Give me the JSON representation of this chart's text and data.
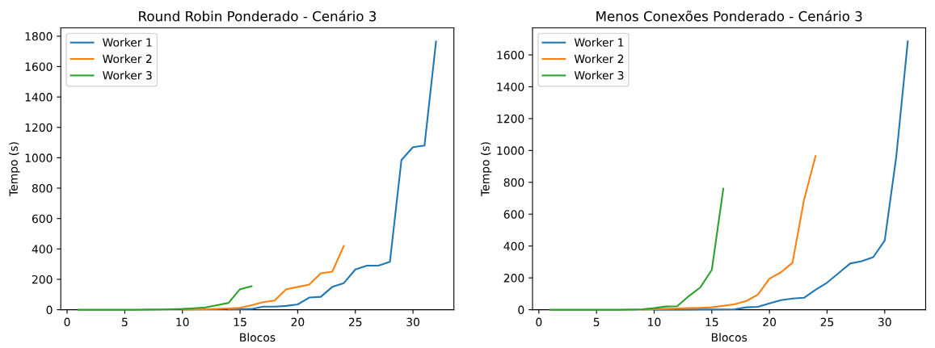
{
  "chart_data": [
    {
      "type": "line",
      "title": "Round Robin Ponderado - Cenário 3",
      "xlabel": "Blocos",
      "ylabel": "Tempo (s)",
      "xlim": [
        -0.55,
        33.55
      ],
      "ylim": [
        0,
        1855
      ],
      "xticks": [
        0,
        5,
        10,
        15,
        20,
        25,
        30
      ],
      "yticks": [
        0,
        200,
        400,
        600,
        800,
        1000,
        1200,
        1400,
        1600,
        1800
      ],
      "grid": false,
      "legend": "top left",
      "series": [
        {
          "name": "Worker 1",
          "color": "#1f77b4",
          "x": [
            14,
            15,
            16,
            17,
            18,
            19,
            20,
            21,
            22,
            23,
            24,
            25,
            26,
            27,
            28,
            29,
            30,
            31,
            32
          ],
          "values": [
            2,
            3,
            5,
            20,
            20,
            25,
            35,
            80,
            85,
            150,
            175,
            265,
            290,
            290,
            315,
            985,
            1070,
            1080,
            1765
          ]
        },
        {
          "name": "Worker 2",
          "color": "#ff7f0e",
          "x": [
            10,
            11,
            12,
            13,
            14,
            15,
            16,
            17,
            18,
            19,
            20,
            21,
            22,
            23,
            24
          ],
          "values": [
            1,
            2,
            3,
            5,
            8,
            12,
            30,
            50,
            60,
            135,
            150,
            165,
            240,
            250,
            420
          ]
        },
        {
          "name": "Worker 3",
          "color": "#2ca02c",
          "x": [
            1,
            2,
            3,
            4,
            5,
            6,
            7,
            8,
            9,
            10,
            11,
            12,
            13,
            14,
            15,
            16
          ],
          "values": [
            0,
            0,
            0,
            0,
            0,
            0,
            1,
            2,
            3,
            5,
            10,
            15,
            30,
            45,
            135,
            155
          ]
        }
      ]
    },
    {
      "type": "line",
      "title": "Menos Conexões Ponderado - Cenário 3",
      "xlabel": "Blocos",
      "ylabel": "Tempo (s)",
      "xlim": [
        -0.55,
        33.55
      ],
      "ylim": [
        0,
        1770
      ],
      "xticks": [
        0,
        5,
        10,
        15,
        20,
        25,
        30
      ],
      "yticks": [
        0,
        200,
        400,
        600,
        800,
        1000,
        1200,
        1400,
        1600
      ],
      "grid": false,
      "legend": "top left",
      "series": [
        {
          "name": "Worker 1",
          "color": "#1f77b4",
          "x": [
            10,
            11,
            12,
            13,
            14,
            15,
            16,
            17,
            18,
            19,
            20,
            21,
            22,
            23,
            24,
            25,
            26,
            27,
            28,
            29,
            30,
            31,
            32
          ],
          "values": [
            0,
            1,
            1,
            1,
            2,
            2,
            2,
            3,
            15,
            18,
            40,
            60,
            70,
            75,
            125,
            170,
            230,
            290,
            305,
            330,
            435,
            960,
            1685
          ]
        },
        {
          "name": "Worker 2",
          "color": "#ff7f0e",
          "x": [
            9,
            10,
            11,
            12,
            13,
            14,
            15,
            16,
            17,
            18,
            19,
            20,
            21,
            22,
            23,
            24
          ],
          "values": [
            1,
            3,
            5,
            8,
            10,
            12,
            15,
            25,
            35,
            55,
            95,
            195,
            235,
            295,
            690,
            965
          ]
        },
        {
          "name": "Worker 3",
          "color": "#2ca02c",
          "x": [
            1,
            2,
            3,
            4,
            5,
            6,
            7,
            8,
            9,
            10,
            11,
            12,
            13,
            14,
            15,
            16
          ],
          "values": [
            0,
            0,
            0,
            0,
            0,
            0,
            0,
            1,
            3,
            10,
            20,
            22,
            85,
            140,
            250,
            760
          ]
        }
      ]
    }
  ]
}
